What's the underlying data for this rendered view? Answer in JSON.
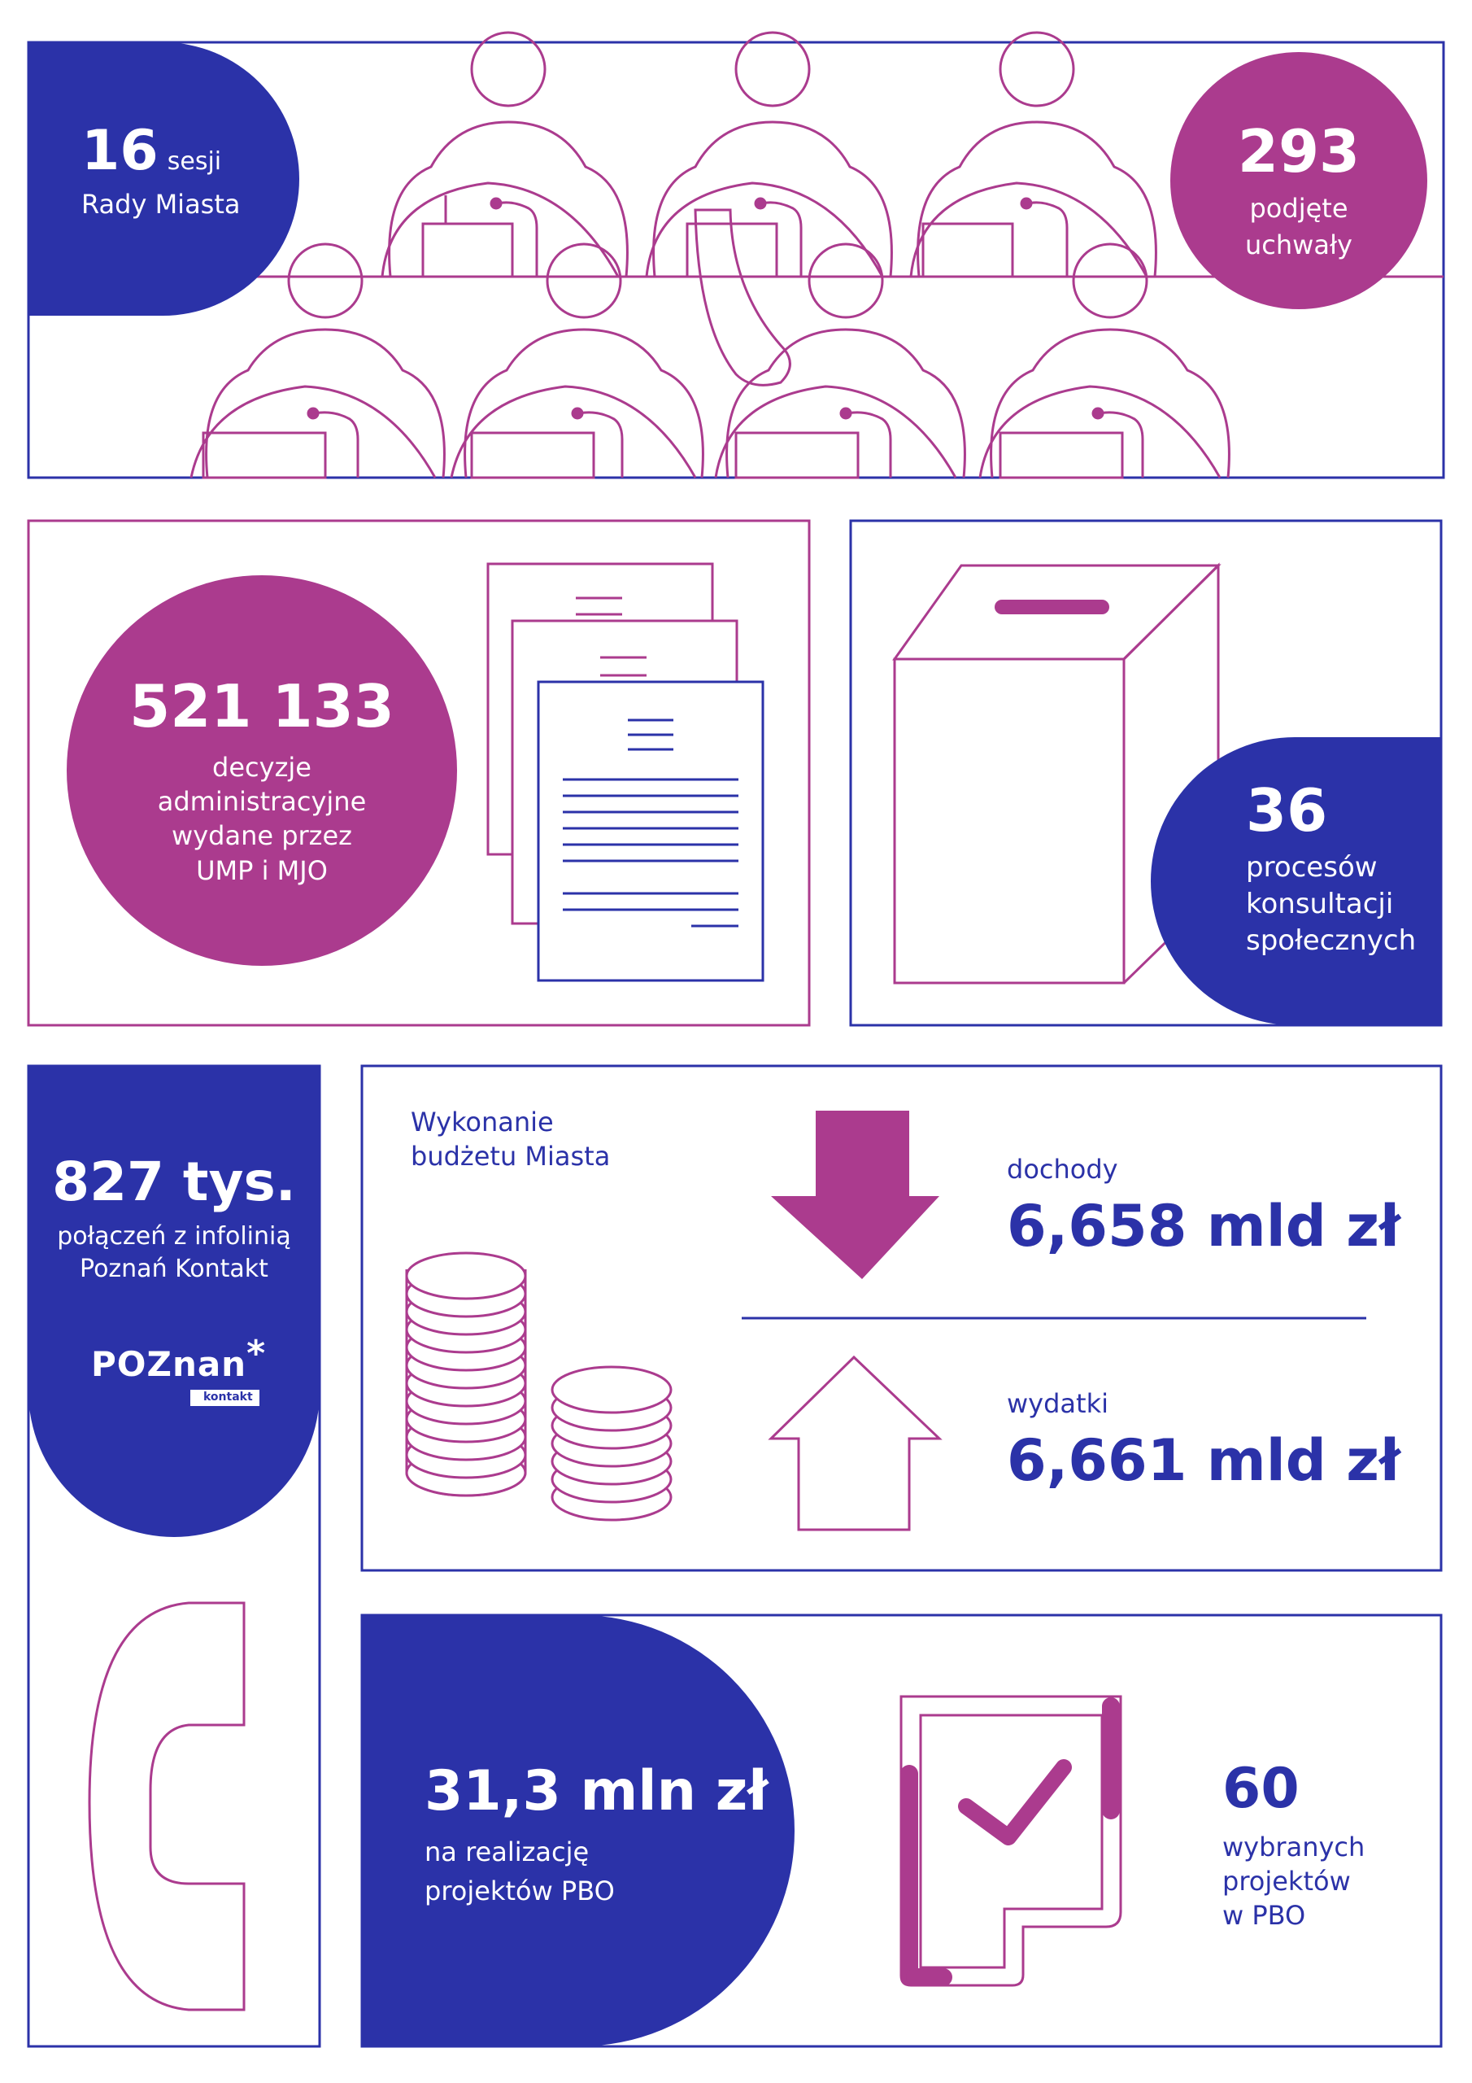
{
  "colors": {
    "blue": "#2b32a8",
    "magenta": "#ab3b8e",
    "white": "#ffffff"
  },
  "council": {
    "sessions_number": "16",
    "sessions_unit": "sesji",
    "sessions_label": "Rady Miasta",
    "resolutions_number": "293",
    "resolutions_label_1": "podjęte",
    "resolutions_label_2": "uchwały"
  },
  "decisions": {
    "number": "521 133",
    "label_lines": [
      "decyzje",
      "administracyjne",
      "wydane przez",
      "UMP i MJO"
    ]
  },
  "consultations": {
    "number": "36",
    "label_lines": [
      "procesów",
      "konsultacji",
      "społecznych"
    ]
  },
  "infoline": {
    "number": "827 tys.",
    "label_lines": [
      "połączeń z infolinią",
      "Poznań Kontakt"
    ],
    "logo_text": "POZnan",
    "logo_star": "*",
    "logo_sub": "kontakt"
  },
  "budget": {
    "title_lines": [
      "Wykonanie",
      "budżetu Miasta"
    ],
    "income_label": "dochody",
    "income_value": "6,658 mld zł",
    "expenses_label": "wydatki",
    "expenses_value": "6,661 mld zł"
  },
  "pbo": {
    "amount": "31,3 mln zł",
    "amount_label_lines": [
      "na realizację",
      "projektów PBO"
    ],
    "projects_number": "60",
    "projects_label_lines": [
      "wybranych",
      "projektów",
      "w PBO"
    ]
  },
  "icons": [
    "council-people-illustration",
    "documents-icon",
    "ballot-box-icon",
    "phone-icon",
    "coins-icon",
    "arrow-down-icon",
    "arrow-up-icon",
    "checkbox-document-icon"
  ]
}
